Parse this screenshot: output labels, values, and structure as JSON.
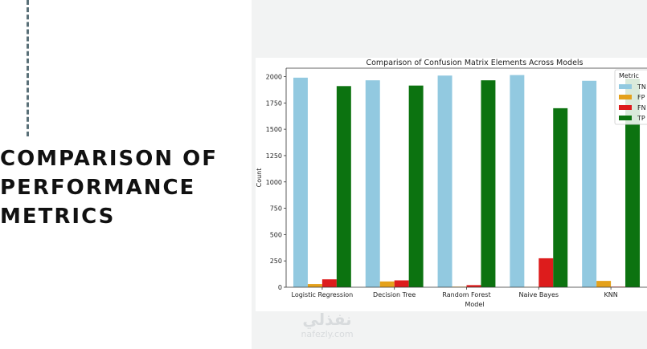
{
  "slide": {
    "title": "COMPARISON OF PERFORMANCE METRICS"
  },
  "watermark": {
    "arabic": "نفذلي",
    "url": "nafezly.com"
  },
  "chart_data": {
    "type": "bar",
    "title": "Comparison of Confusion Matrix Elements Across Models",
    "xlabel": "Model",
    "ylabel": "Count",
    "ylim": [
      0,
      2080
    ],
    "yticks": [
      0,
      250,
      500,
      750,
      1000,
      1250,
      1500,
      1750,
      2000
    ],
    "categories": [
      "Logistic Regression",
      "Decision Tree",
      "Random Forest",
      "Naive Bayes",
      "KNN"
    ],
    "legend_title": "Metric",
    "legend_position": "top-right",
    "grid": false,
    "series": [
      {
        "name": "TN",
        "color": "#92c9e0",
        "values": [
          1990,
          1965,
          2010,
          2015,
          1960
        ]
      },
      {
        "name": "FP",
        "color": "#e4a11b",
        "values": [
          30,
          55,
          5,
          3,
          60
        ]
      },
      {
        "name": "FN",
        "color": "#dd1c1c",
        "values": [
          75,
          65,
          20,
          275,
          5
        ]
      },
      {
        "name": "TP",
        "color": "#0c7310",
        "values": [
          1910,
          1915,
          1965,
          1700,
          1980
        ]
      }
    ]
  }
}
